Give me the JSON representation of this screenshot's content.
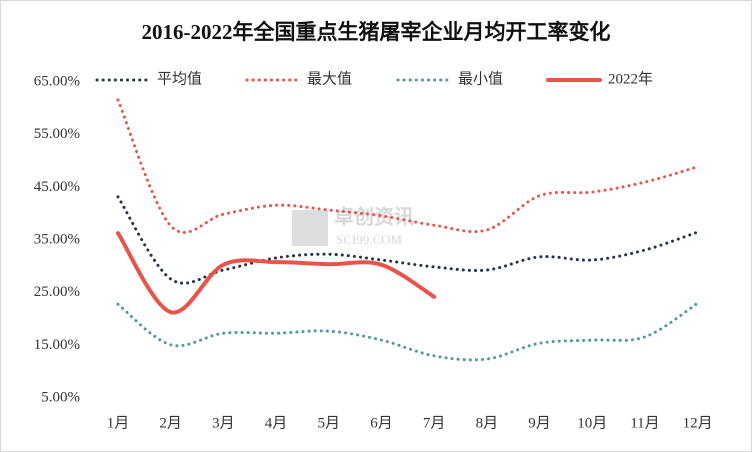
{
  "chart_data": {
    "type": "line",
    "title": "2016-2022年全国重点生猪屠宰企业月均开工率变化",
    "watermark": [
      "卓创资讯",
      "SCI99.COM"
    ],
    "categories": [
      "1月",
      "2月",
      "3月",
      "4月",
      "5月",
      "6月",
      "7月",
      "8月",
      "9月",
      "10月",
      "11月",
      "12月"
    ],
    "series": [
      {
        "name": "平均值",
        "color": "#243447",
        "style": "dotted",
        "values": [
          43.2,
          27.6,
          29.3,
          31.6,
          32.3,
          31.2,
          29.9,
          29.3,
          31.8,
          31.2,
          33.1,
          36.5
        ]
      },
      {
        "name": "最大值",
        "color": "#e8534a",
        "style": "dotted",
        "values": [
          61.6,
          37.7,
          39.9,
          41.6,
          40.7,
          39.6,
          37.8,
          36.9,
          43.4,
          44.1,
          46.0,
          48.9
        ]
      },
      {
        "name": "最小值",
        "color": "#4f9a94",
        "style": "dotted",
        "values": [
          22.8,
          15.1,
          17.3,
          17.3,
          17.7,
          16.0,
          13.0,
          12.4,
          15.4,
          16.0,
          16.6,
          23.0
        ]
      },
      {
        "name": "2022年",
        "color": "#e8534a",
        "style": "solid",
        "values": [
          36.3,
          21.3,
          30.3,
          30.8,
          30.4,
          30.3,
          24.2,
          null,
          null,
          null,
          null,
          null
        ]
      }
    ],
    "ylim": [
      5,
      65
    ],
    "yticks": [
      {
        "value": 5,
        "label": "5.00%"
      },
      {
        "value": 15,
        "label": "15.00%"
      },
      {
        "value": 25,
        "label": "25.00%"
      },
      {
        "value": 35,
        "label": "35.00%"
      },
      {
        "value": 45,
        "label": "45.00%"
      },
      {
        "value": 55,
        "label": "55.00%"
      },
      {
        "value": 65,
        "label": "65.00%"
      }
    ],
    "grid": false,
    "legend": "top"
  }
}
